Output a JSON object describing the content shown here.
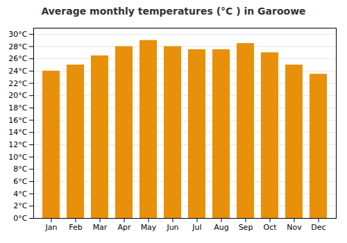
{
  "chart_data": {
    "type": "bar",
    "title": "Average monthly temperatures (°C ) in Garoowe",
    "categories": [
      "Jan",
      "Feb",
      "Mar",
      "Apr",
      "May",
      "Jun",
      "Jul",
      "Aug",
      "Sep",
      "Oct",
      "Nov",
      "Dec"
    ],
    "values": [
      24.0,
      25.0,
      26.5,
      28.0,
      29.0,
      28.0,
      27.5,
      27.5,
      28.5,
      27.0,
      25.0,
      23.5
    ],
    "color": "#E8900A",
    "ylim": [
      0,
      31
    ],
    "yticks": [
      {
        "value": 0,
        "label": "0°C"
      },
      {
        "value": 2,
        "label": "2°C"
      },
      {
        "value": 4,
        "label": "4°C"
      },
      {
        "value": 6,
        "label": "6°C"
      },
      {
        "value": 8,
        "label": "8°C"
      },
      {
        "value": 10,
        "label": "10°C"
      },
      {
        "value": 12,
        "label": "12°C"
      },
      {
        "value": 14,
        "label": "14°C"
      },
      {
        "value": 16,
        "label": "16°C"
      },
      {
        "value": 18,
        "label": "18°C"
      },
      {
        "value": 20,
        "label": "20°C"
      },
      {
        "value": 22,
        "label": "22°C"
      },
      {
        "value": 24,
        "label": "24°C"
      },
      {
        "value": 26,
        "label": "26°C"
      },
      {
        "value": 28,
        "label": "28°C"
      },
      {
        "value": 30,
        "label": "30°C"
      }
    ],
    "grid": true
  }
}
